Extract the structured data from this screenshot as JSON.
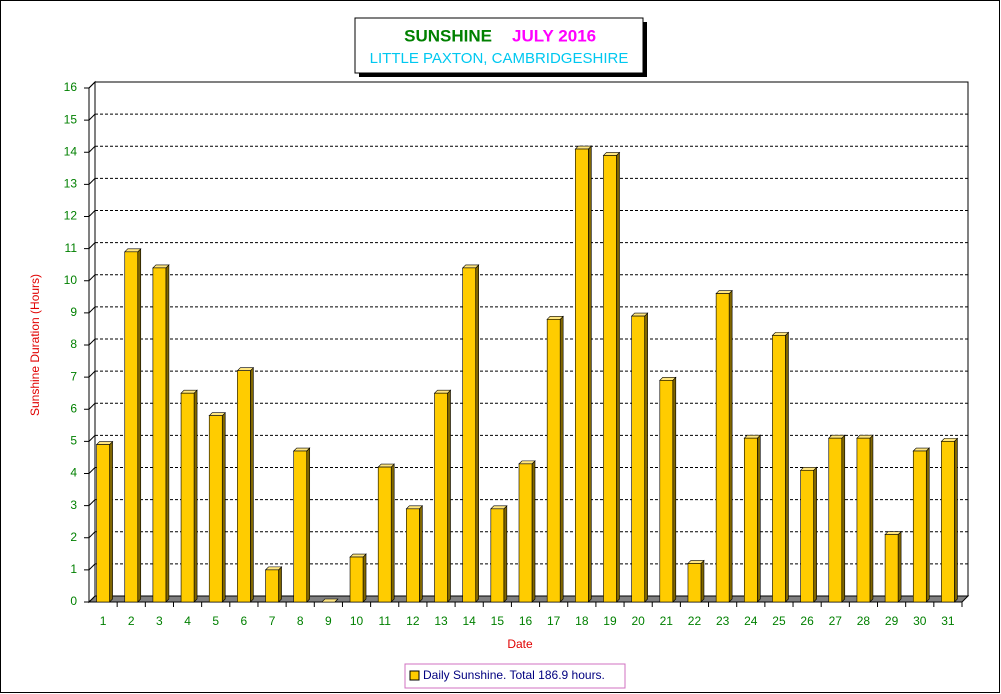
{
  "chart_data": {
    "type": "bar3d",
    "title": [
      "SUNSHINE",
      "JULY 2016"
    ],
    "subtitle": "LITTLE PAXTON, CAMBRIDGESHIRE",
    "xlabel": "Date",
    "ylabel": "Sunshine Duration (Hours)",
    "categories": [
      "1",
      "2",
      "3",
      "4",
      "5",
      "6",
      "7",
      "8",
      "9",
      "10",
      "11",
      "12",
      "13",
      "14",
      "15",
      "16",
      "17",
      "18",
      "19",
      "20",
      "21",
      "22",
      "23",
      "24",
      "25",
      "26",
      "27",
      "28",
      "29",
      "30",
      "31"
    ],
    "series": [
      {
        "name": "Daily Sunshine. Total 186.9 hours.",
        "color": "#ffcc00",
        "values": [
          4.9,
          10.9,
          10.4,
          6.5,
          5.8,
          7.2,
          1.0,
          4.7,
          0.0,
          1.4,
          4.2,
          2.9,
          6.5,
          10.4,
          2.9,
          4.3,
          8.8,
          14.1,
          13.9,
          8.9,
          6.9,
          1.2,
          9.6,
          5.1,
          8.3,
          4.1,
          5.1,
          5.1,
          2.1,
          4.7,
          5.0
        ]
      }
    ],
    "ylim": [
      0,
      16
    ],
    "yticks": [
      0,
      1,
      2,
      3,
      4,
      5,
      6,
      7,
      8,
      9,
      10,
      11,
      12,
      13,
      14,
      15,
      16
    ],
    "grid": true
  }
}
